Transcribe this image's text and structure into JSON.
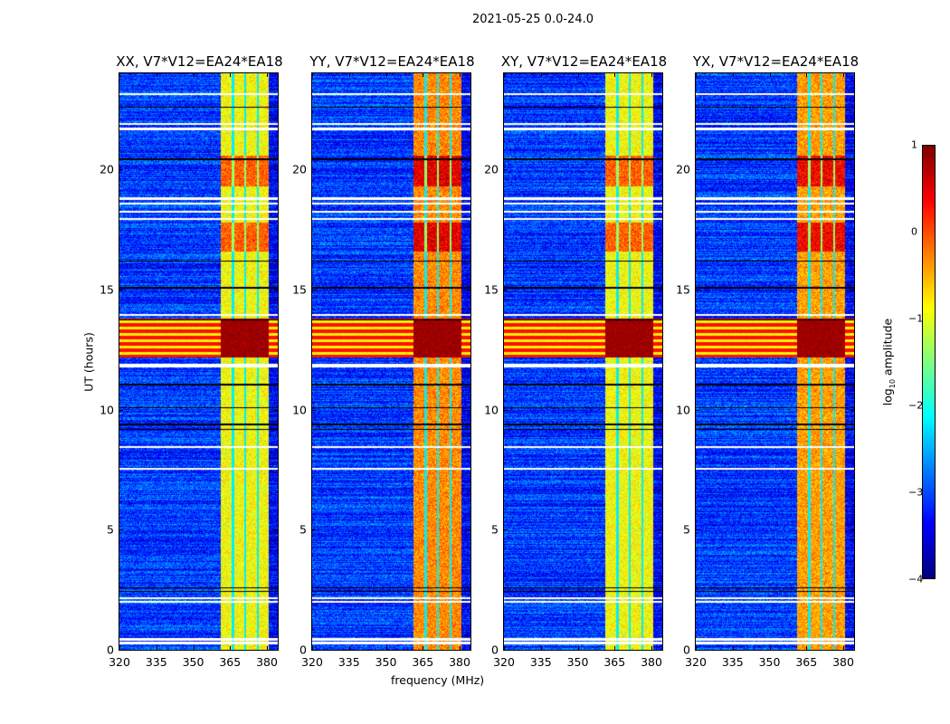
{
  "suptitle": "2021-05-25 0.0-24.0",
  "chart_data": {
    "type": "heatmap",
    "title": "2021-05-25 0.0-24.0",
    "xlabel": "frequency (MHz)",
    "ylabel": "UT (hours)",
    "xlim": [
      320,
      384.4
    ],
    "ylim": [
      0,
      24
    ],
    "xticks": [
      "320",
      "335",
      "350",
      "365",
      "380"
    ],
    "yticks": [
      "0",
      "5",
      "10",
      "15",
      "20"
    ],
    "panels": [
      {
        "title": "XX, V7*V12=EA24*EA18",
        "band_level": -0.9
      },
      {
        "title": "YY, V7*V12=EA24*EA18",
        "band_level": -0.3
      },
      {
        "title": "XY, V7*V12=EA24*EA18",
        "band_level": -0.9
      },
      {
        "title": "YX, V7*V12=EA24*EA18",
        "band_level": -0.4
      }
    ],
    "background_level": -3.1,
    "bright_band_mhz": [
      361,
      380.5
    ],
    "band_gaps_mhz": [
      366,
      371,
      376
    ],
    "rfi_ut_hours": [
      [
        12.2,
        13.8
      ]
    ],
    "enhanced_ut_hours": [
      [
        16.6,
        17.8
      ],
      [
        19.3,
        20.6
      ]
    ],
    "flagged_ut_hours": [
      0.3,
      0.45,
      2.0,
      2.15,
      7.55,
      8.45,
      11.8,
      11.9,
      13.95,
      17.95,
      18.25,
      18.6,
      18.8,
      21.7,
      21.9,
      23.15
    ],
    "dark_ut_hours": [
      2.45,
      2.6,
      9.2,
      9.4,
      10.1,
      11.05,
      13.75,
      15.1,
      16.2,
      20.45,
      22.6
    ],
    "colorbar": {
      "label": "log",
      "label_sub": "10",
      "label_suffix": " amplitude",
      "range": [
        -4,
        1
      ],
      "ticks": [
        "1",
        "0",
        "−1",
        "−2",
        "−3",
        "−4"
      ]
    }
  }
}
